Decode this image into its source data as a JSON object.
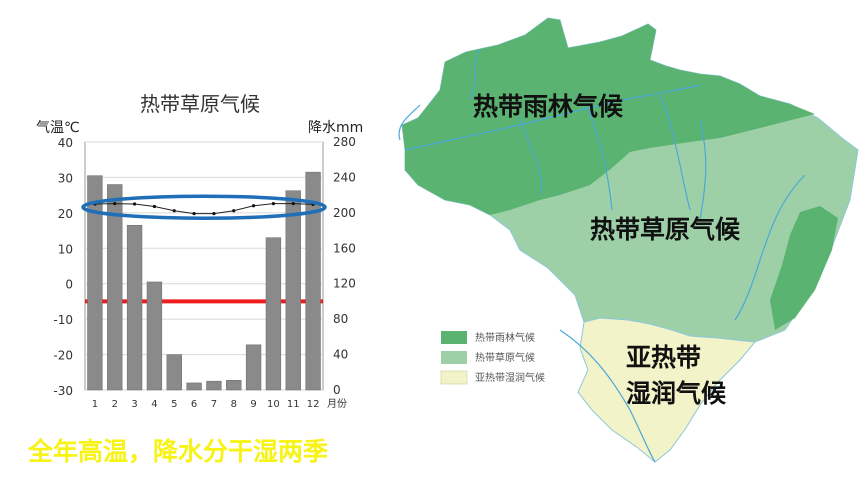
{
  "chart_data": {
    "type": "bar+line",
    "title": "热带草原气候",
    "left_axis_label": "气温℃",
    "right_axis_label": "降水mm",
    "x_unit_label": "月份",
    "categories": [
      "1",
      "2",
      "3",
      "4",
      "5",
      "6",
      "7",
      "8",
      "9",
      "10",
      "11",
      "12"
    ],
    "left_ticks": [
      "40",
      "30",
      "20",
      "10",
      "0",
      "-10",
      "-20",
      "-30"
    ],
    "right_ticks": [
      "280",
      "240",
      "200",
      "160",
      "120",
      "80",
      "40",
      "0"
    ],
    "left_ylim": [
      -30,
      40
    ],
    "right_ylim": [
      0,
      280
    ],
    "grid": "horizontal",
    "series": [
      {
        "name": "降水",
        "type": "bar",
        "axis": "right",
        "values": [
          242,
          232,
          186,
          122,
          40,
          8,
          10,
          11,
          51,
          172,
          225,
          246
        ]
      },
      {
        "name": "气温",
        "type": "line",
        "axis": "left",
        "values": [
          22.5,
          22.6,
          22.5,
          21.8,
          20.6,
          19.8,
          19.8,
          20.6,
          22.0,
          22.6,
          22.6,
          22.4
        ]
      }
    ],
    "annotations": {
      "highlight_ellipse_color": "#1e6fb8",
      "reference_line_color": "#ee1c1c",
      "reference_line_value": -5
    }
  },
  "caption": "全年高温，降水分干湿两季",
  "map": {
    "labels": {
      "rainforest": "热带雨林气候",
      "savanna": "热带草原气候",
      "subtropical_line1": "亚热带",
      "subtropical_line2": "湿润气候"
    },
    "legend": [
      {
        "label": "热带雨林气候",
        "color": "#5bb372"
      },
      {
        "label": "热带草原气候",
        "color": "#9ed0a8"
      },
      {
        "label": "亚热带湿润气候",
        "color": "#f2f3c8"
      }
    ],
    "colors": {
      "rainforest": "#5bb372",
      "savanna": "#9ed0a8",
      "subtropical": "#f2f3c8",
      "river": "#4aa8d8"
    }
  }
}
